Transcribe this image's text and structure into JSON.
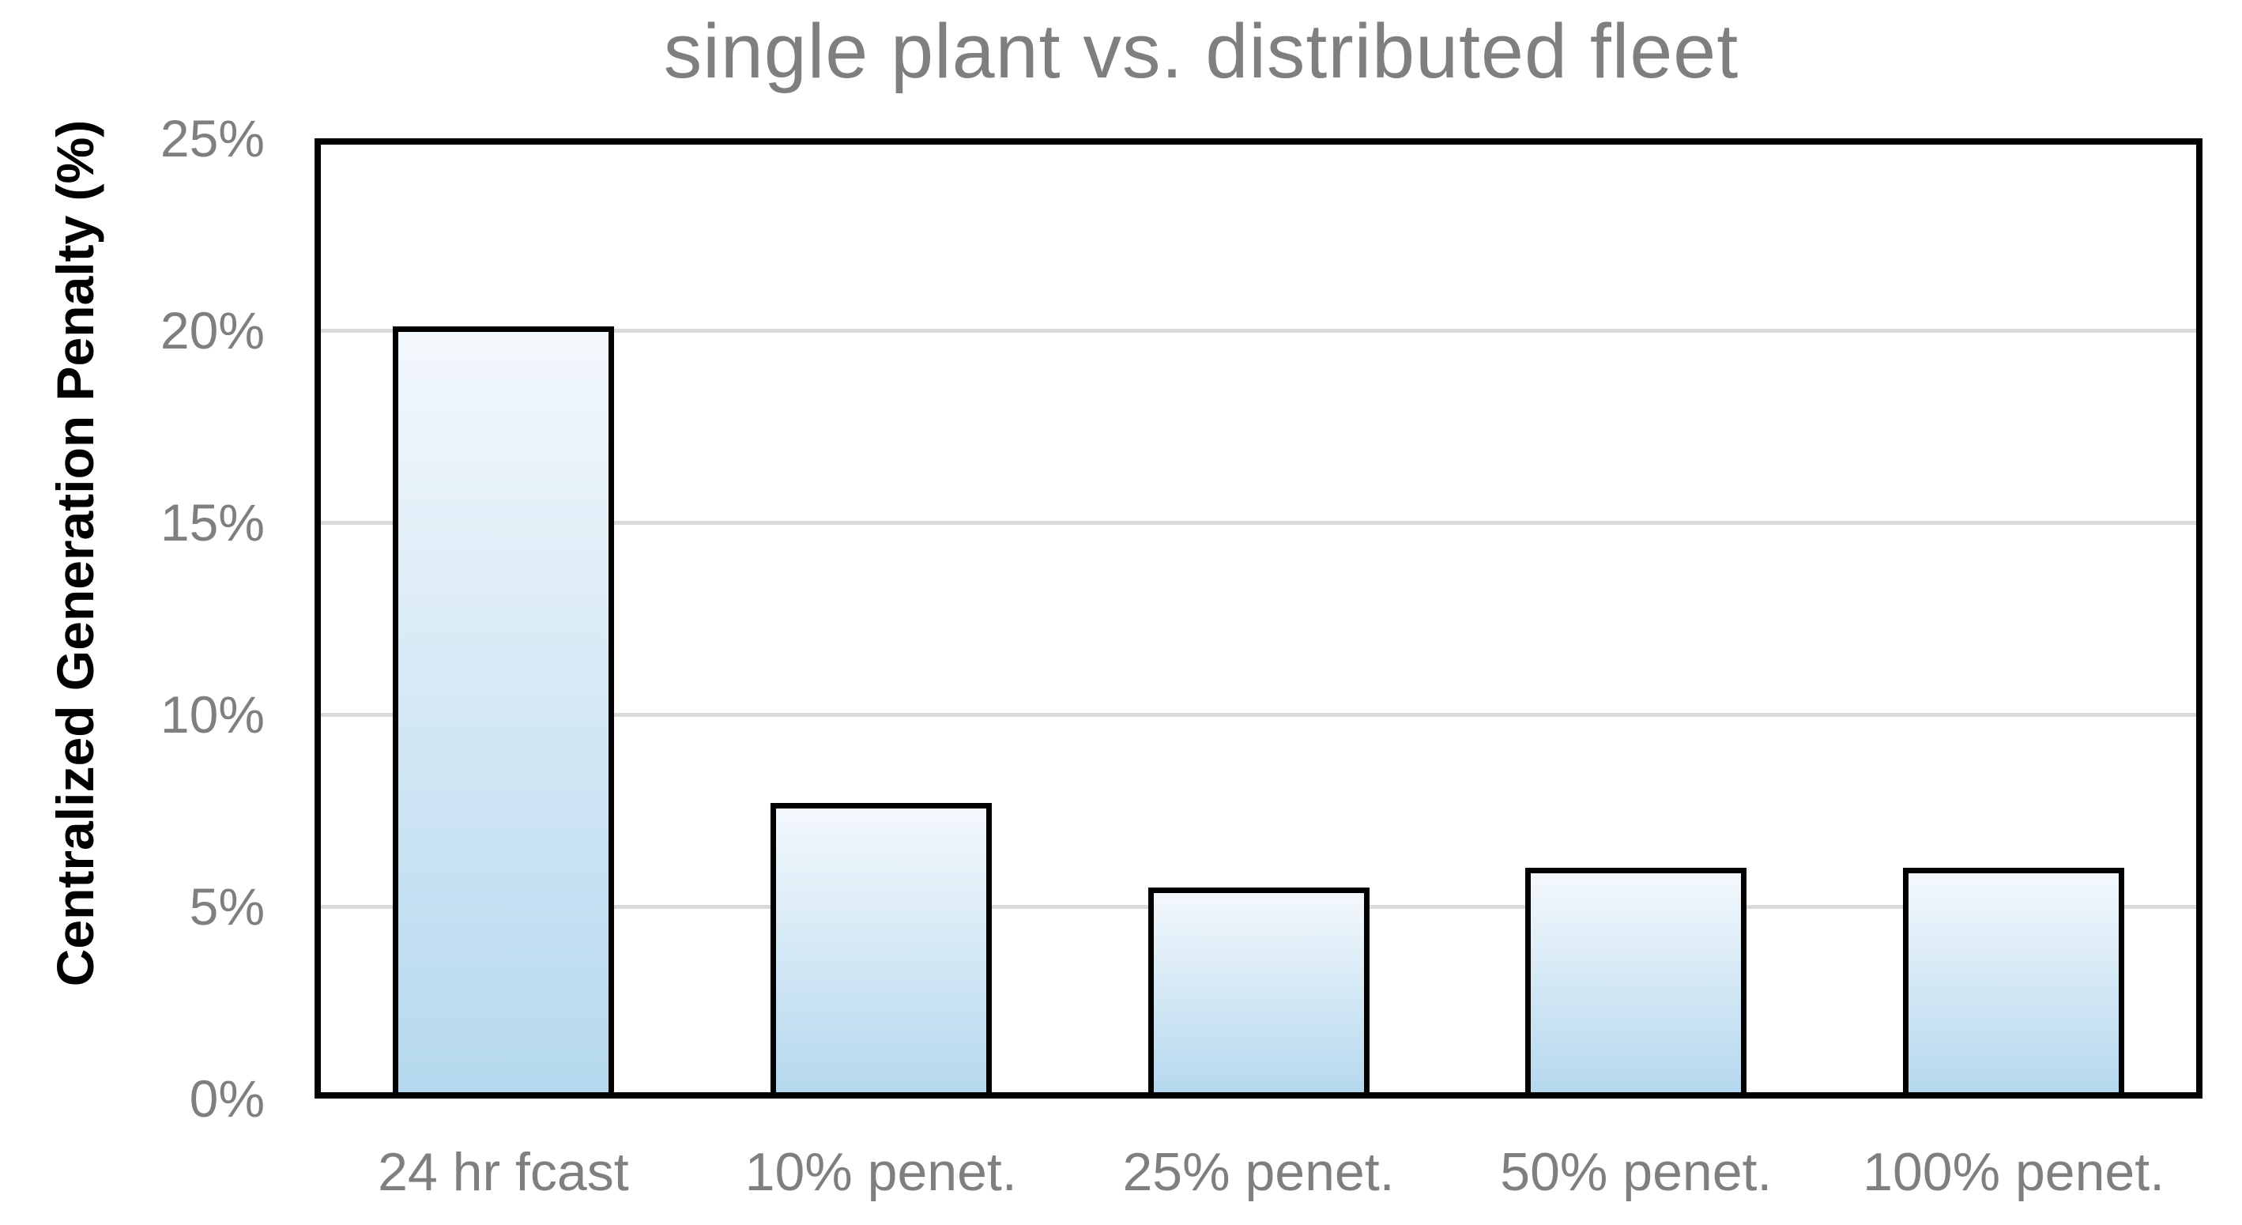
{
  "chart_data": {
    "type": "bar",
    "title": "single plant vs. distributed fleet",
    "categories": [
      "24 hr fcast",
      "10% penet.",
      "25% penet.",
      "50% penet.",
      "100% penet."
    ],
    "values": [
      20.1,
      7.7,
      5.5,
      6.0,
      6.0
    ],
    "xlabel": "",
    "ylabel": "Centralized Generation Penalty (%)",
    "ylim": [
      0,
      25
    ],
    "yticks": [
      0,
      5,
      10,
      15,
      20,
      25
    ],
    "ytick_labels": [
      "0%",
      "5%",
      "10%",
      "15%",
      "20%",
      "25%"
    ],
    "grid": "horizontal",
    "legend": "none",
    "colors": {
      "title": "#7f7f7f",
      "tick_labels": "#7f7f7f",
      "category_labels": "#7f7f7f",
      "y_axis_title": "#000000",
      "gridline": "#d9d9d9",
      "plot_border": "#000000",
      "bar_border": "#000000",
      "bar_fill_top": "#f3f8fc",
      "bar_fill_bottom": "#b5d8ee",
      "background": "#ffffff"
    }
  }
}
